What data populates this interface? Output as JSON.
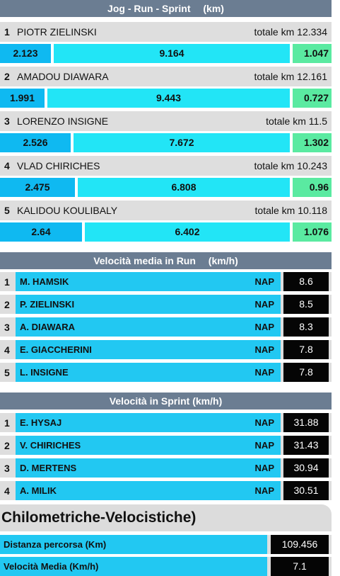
{
  "section1": {
    "title": "Jog  -  Run  -  Sprint",
    "unit": "(km)",
    "total_label": "totale km",
    "players": [
      {
        "rank": "1",
        "name": "PIOTR ZIELINSKI",
        "total": "12.334",
        "jog": "2.123",
        "run": "9.164",
        "sprint": "1.047"
      },
      {
        "rank": "2",
        "name": "AMADOU DIAWARA",
        "total": "12.161",
        "jog": "1.991",
        "run": "9.443",
        "sprint": "0.727"
      },
      {
        "rank": "3",
        "name": "LORENZO INSIGNE",
        "total": "11.5",
        "jog": "2.526",
        "run": "7.672",
        "sprint": "1.302"
      },
      {
        "rank": "4",
        "name": "VLAD CHIRICHES",
        "total": "10.243",
        "jog": "2.475",
        "run": "6.808",
        "sprint": "0.96"
      },
      {
        "rank": "5",
        "name": "KALIDOU KOULIBALY",
        "total": "10.118",
        "jog": "2.64",
        "run": "6.402",
        "sprint": "1.076"
      }
    ]
  },
  "section2": {
    "title": "Velocità media in Run",
    "unit": "(km/h)",
    "rows": [
      {
        "rank": "1",
        "name": "M. HAMSIK",
        "team": "NAP",
        "value": "8.6"
      },
      {
        "rank": "2",
        "name": "P. ZIELINSKI",
        "team": "NAP",
        "value": "8.5"
      },
      {
        "rank": "3",
        "name": "A. DIAWARA",
        "team": "NAP",
        "value": "8.3"
      },
      {
        "rank": "4",
        "name": "E. GIACCHERINI",
        "team": "NAP",
        "value": "7.8"
      },
      {
        "rank": "5",
        "name": "L. INSIGNE",
        "team": "NAP",
        "value": "7.8"
      }
    ]
  },
  "section3": {
    "title": "Velocità in Sprint (km/h)",
    "rows": [
      {
        "rank": "1",
        "name": "E. HYSAJ",
        "team": "NAP",
        "value": "31.88"
      },
      {
        "rank": "2",
        "name": "V. CHIRICHES",
        "team": "NAP",
        "value": "31.43"
      },
      {
        "rank": "3",
        "name": "D. MERTENS",
        "team": "NAP",
        "value": "30.94"
      },
      {
        "rank": "4",
        "name": "A. MILIK",
        "team": "NAP",
        "value": "30.51"
      }
    ]
  },
  "section4": {
    "title": "Chilometriche-Velocistiche)",
    "rows": [
      {
        "label": "Distanza percorsa (Km)",
        "value": "109.456"
      },
      {
        "label": "Velocità Media (Km/h)",
        "value": "7.1"
      }
    ]
  }
}
